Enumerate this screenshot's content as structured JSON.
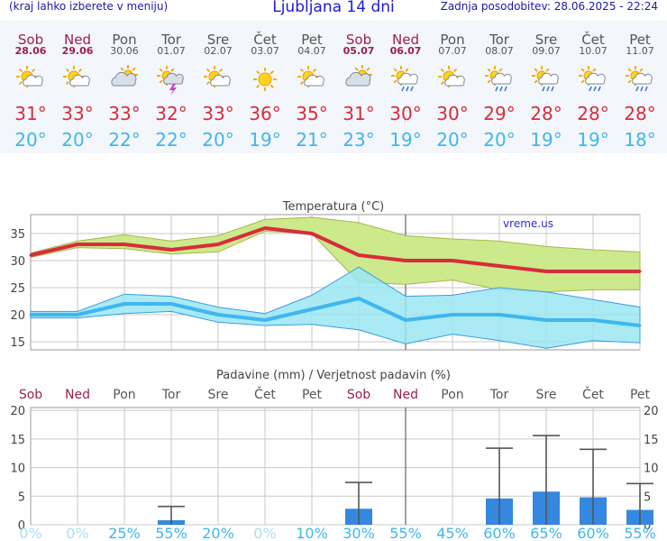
{
  "header": {
    "left_note": "(kraj lahko izberete v meniju)",
    "title": "Ljubljana 14 dni",
    "updated": "Zadnja posodobitev: 28.06.2025 - 22:24"
  },
  "days": [
    {
      "name": "Sob",
      "date": "28.06",
      "weekend": true,
      "icon": "sun-cloud-icon",
      "tmax": "31°",
      "tmin": "20°"
    },
    {
      "name": "Ned",
      "date": "29.06",
      "weekend": true,
      "icon": "sun-cloud-icon",
      "tmax": "33°",
      "tmin": "20°"
    },
    {
      "name": "Pon",
      "date": "30.06",
      "weekend": false,
      "icon": "cloud-sun-icon",
      "tmax": "33°",
      "tmin": "22°"
    },
    {
      "name": "Tor",
      "date": "01.07",
      "weekend": false,
      "icon": "thunderstorm-icon",
      "tmax": "32°",
      "tmin": "22°"
    },
    {
      "name": "Sre",
      "date": "02.07",
      "weekend": false,
      "icon": "sun-cloud-icon",
      "tmax": "33°",
      "tmin": "20°"
    },
    {
      "name": "Čet",
      "date": "03.07",
      "weekend": false,
      "icon": "sun-icon",
      "tmax": "36°",
      "tmin": "19°"
    },
    {
      "name": "Pet",
      "date": "04.07",
      "weekend": false,
      "icon": "sun-cloud-icon",
      "tmax": "35°",
      "tmin": "21°"
    },
    {
      "name": "Sob",
      "date": "05.07",
      "weekend": true,
      "icon": "cloud-sun-icon",
      "tmax": "31°",
      "tmin": "23°"
    },
    {
      "name": "Ned",
      "date": "06.07",
      "weekend": true,
      "icon": "sun-rain-icon",
      "tmax": "30°",
      "tmin": "19°"
    },
    {
      "name": "Pon",
      "date": "07.07",
      "weekend": false,
      "icon": "sun-cloud-icon",
      "tmax": "30°",
      "tmin": "20°"
    },
    {
      "name": "Tor",
      "date": "08.07",
      "weekend": false,
      "icon": "sun-rain-icon",
      "tmax": "29°",
      "tmin": "20°"
    },
    {
      "name": "Sre",
      "date": "09.07",
      "weekend": false,
      "icon": "sun-rain-icon",
      "tmax": "28°",
      "tmin": "19°"
    },
    {
      "name": "Čet",
      "date": "10.07",
      "weekend": false,
      "icon": "sun-rain-icon",
      "tmax": "28°",
      "tmin": "19°"
    },
    {
      "name": "Pet",
      "date": "11.07",
      "weekend": false,
      "icon": "sun-rain-icon",
      "tmax": "28°",
      "tmin": "18°"
    }
  ],
  "watermark": "vreme.us",
  "colors": {
    "weekend_text": "#9b1f4e",
    "weekday_text": "#555555",
    "tmax": "#d82c3c",
    "tmin": "#3fb6f0",
    "tmax_band": "#cce98c",
    "tmin_band": "#9ae6f2",
    "rain_bar": "#3488e0"
  },
  "chart_data": [
    {
      "type": "line",
      "title": "Temperatura (°C)",
      "categories": [
        "Sob",
        "Ned",
        "Pon",
        "Tor",
        "Sre",
        "Čet",
        "Pet",
        "Sob",
        "Ned",
        "Pon",
        "Tor",
        "Sre",
        "Čet",
        "Pet"
      ],
      "ylim": [
        13.5,
        38.5
      ],
      "yticks": [
        15,
        20,
        25,
        30,
        35
      ],
      "grid": true,
      "series": [
        {
          "values": [
            31,
            33,
            33,
            32,
            33,
            36,
            35,
            31,
            30,
            30,
            29,
            28,
            28,
            28
          ],
          "band": [
            [
              30.6,
              31.4
            ],
            [
              32.4,
              33.6
            ],
            [
              32.2,
              34.8
            ],
            [
              31.2,
              33.6
            ],
            [
              31.6,
              34.6
            ],
            [
              35.4,
              37.6
            ],
            [
              35.0,
              38.0
            ],
            [
              26.0,
              37.0
            ],
            [
              25.6,
              34.6
            ],
            [
              26.4,
              34.0
            ],
            [
              24.6,
              33.6
            ],
            [
              24.2,
              32.6
            ],
            [
              24.6,
              32.0
            ],
            [
              24.6,
              31.6
            ]
          ]
        },
        {
          "values": [
            20,
            20,
            22,
            22,
            20,
            19,
            21,
            23,
            19,
            20,
            20,
            19,
            19,
            18
          ],
          "band": [
            [
              19.4,
              20.6
            ],
            [
              19.4,
              20.6
            ],
            [
              20.2,
              23.8
            ],
            [
              20.6,
              23.4
            ],
            [
              18.6,
              21.4
            ],
            [
              18.0,
              20.2
            ],
            [
              18.2,
              23.6
            ],
            [
              17.2,
              28.8
            ],
            [
              14.6,
              23.4
            ],
            [
              16.4,
              23.6
            ],
            [
              15.2,
              25.0
            ],
            [
              13.8,
              24.2
            ],
            [
              15.2,
              22.8
            ],
            [
              14.8,
              21.4
            ]
          ]
        }
      ]
    },
    {
      "type": "bar",
      "title": "Padavine (mm) / Verjetnost padavin (%)",
      "categories": [
        "Sob",
        "Ned",
        "Pon",
        "Tor",
        "Sre",
        "Čet",
        "Pet",
        "Sob",
        "Ned",
        "Pon",
        "Tor",
        "Sre",
        "Čet",
        "Pet"
      ],
      "ylim": [
        0,
        20.5
      ],
      "yticks": [
        0,
        5,
        10,
        15,
        20
      ],
      "grid": true,
      "values": [
        0,
        0,
        0,
        0.8,
        0,
        0,
        0,
        2.8,
        0,
        0,
        4.6,
        5.8,
        4.8,
        2.6
      ],
      "error_max": [
        0,
        0,
        0,
        3.2,
        0,
        0,
        0,
        7.4,
        0,
        0,
        13.4,
        15.6,
        13.2,
        7.2
      ],
      "probability": [
        "0%",
        "0%",
        "25%",
        "55%",
        "20%",
        "0%",
        "10%",
        "30%",
        "55%",
        "45%",
        "60%",
        "65%",
        "60%",
        "55%"
      ]
    }
  ]
}
